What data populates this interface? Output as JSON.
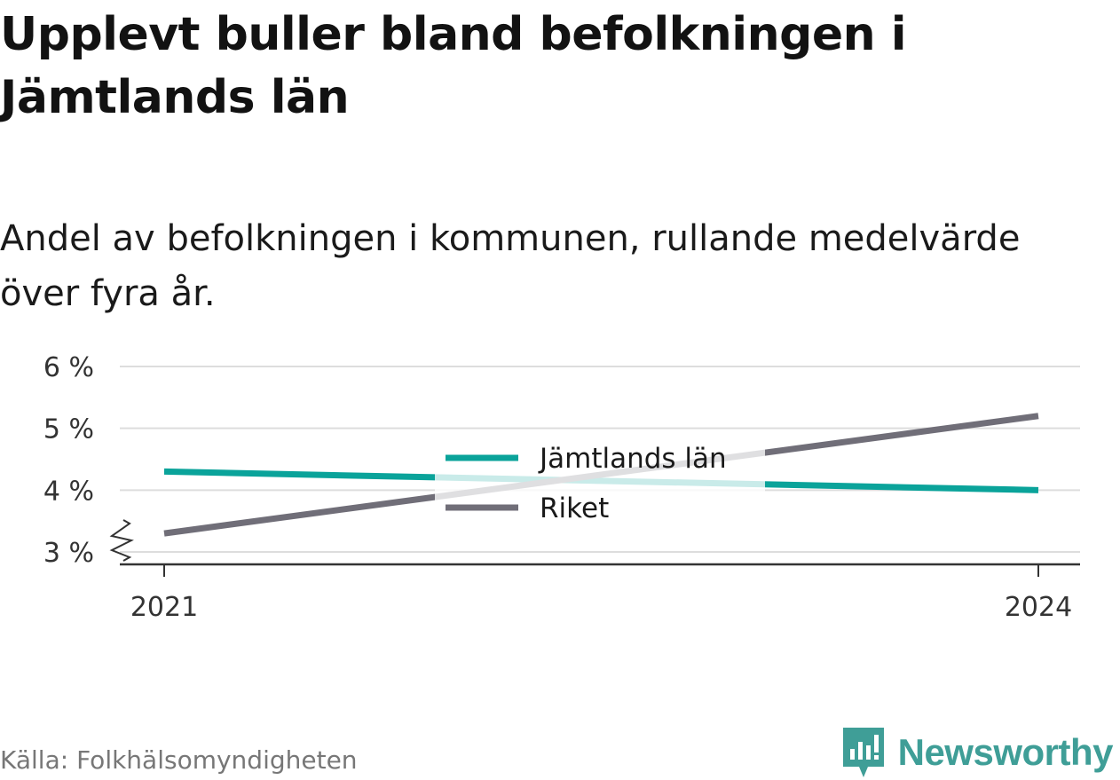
{
  "title": "Upplevt buller bland befolkningen i Jämtlands län",
  "subtitle": "Andel av befolkningen i kommunen, rullande medelvärde över fyra år.",
  "source": "Källa: Folkhälsomyndigheten",
  "brand": {
    "name": "Newsworthy",
    "icon": "newsworthy-logo-icon",
    "color": "#3f9e97"
  },
  "chart_data": {
    "type": "line",
    "x": [
      2021,
      2024
    ],
    "x_tick_labels": [
      "2021",
      "2024"
    ],
    "y_ticks": [
      3,
      4,
      5,
      6
    ],
    "y_tick_labels": [
      "3 %",
      "4 %",
      "5 %",
      "6 %"
    ],
    "ylim": [
      3,
      6
    ],
    "y_axis_break": true,
    "grid": true,
    "legend_position": "center",
    "series": [
      {
        "name": "Jämtlands län",
        "color": "#0aa39a",
        "values": [
          4.3,
          4.0
        ]
      },
      {
        "name": "Riket",
        "color": "#706e78",
        "values": [
          3.3,
          5.2
        ]
      }
    ]
  }
}
